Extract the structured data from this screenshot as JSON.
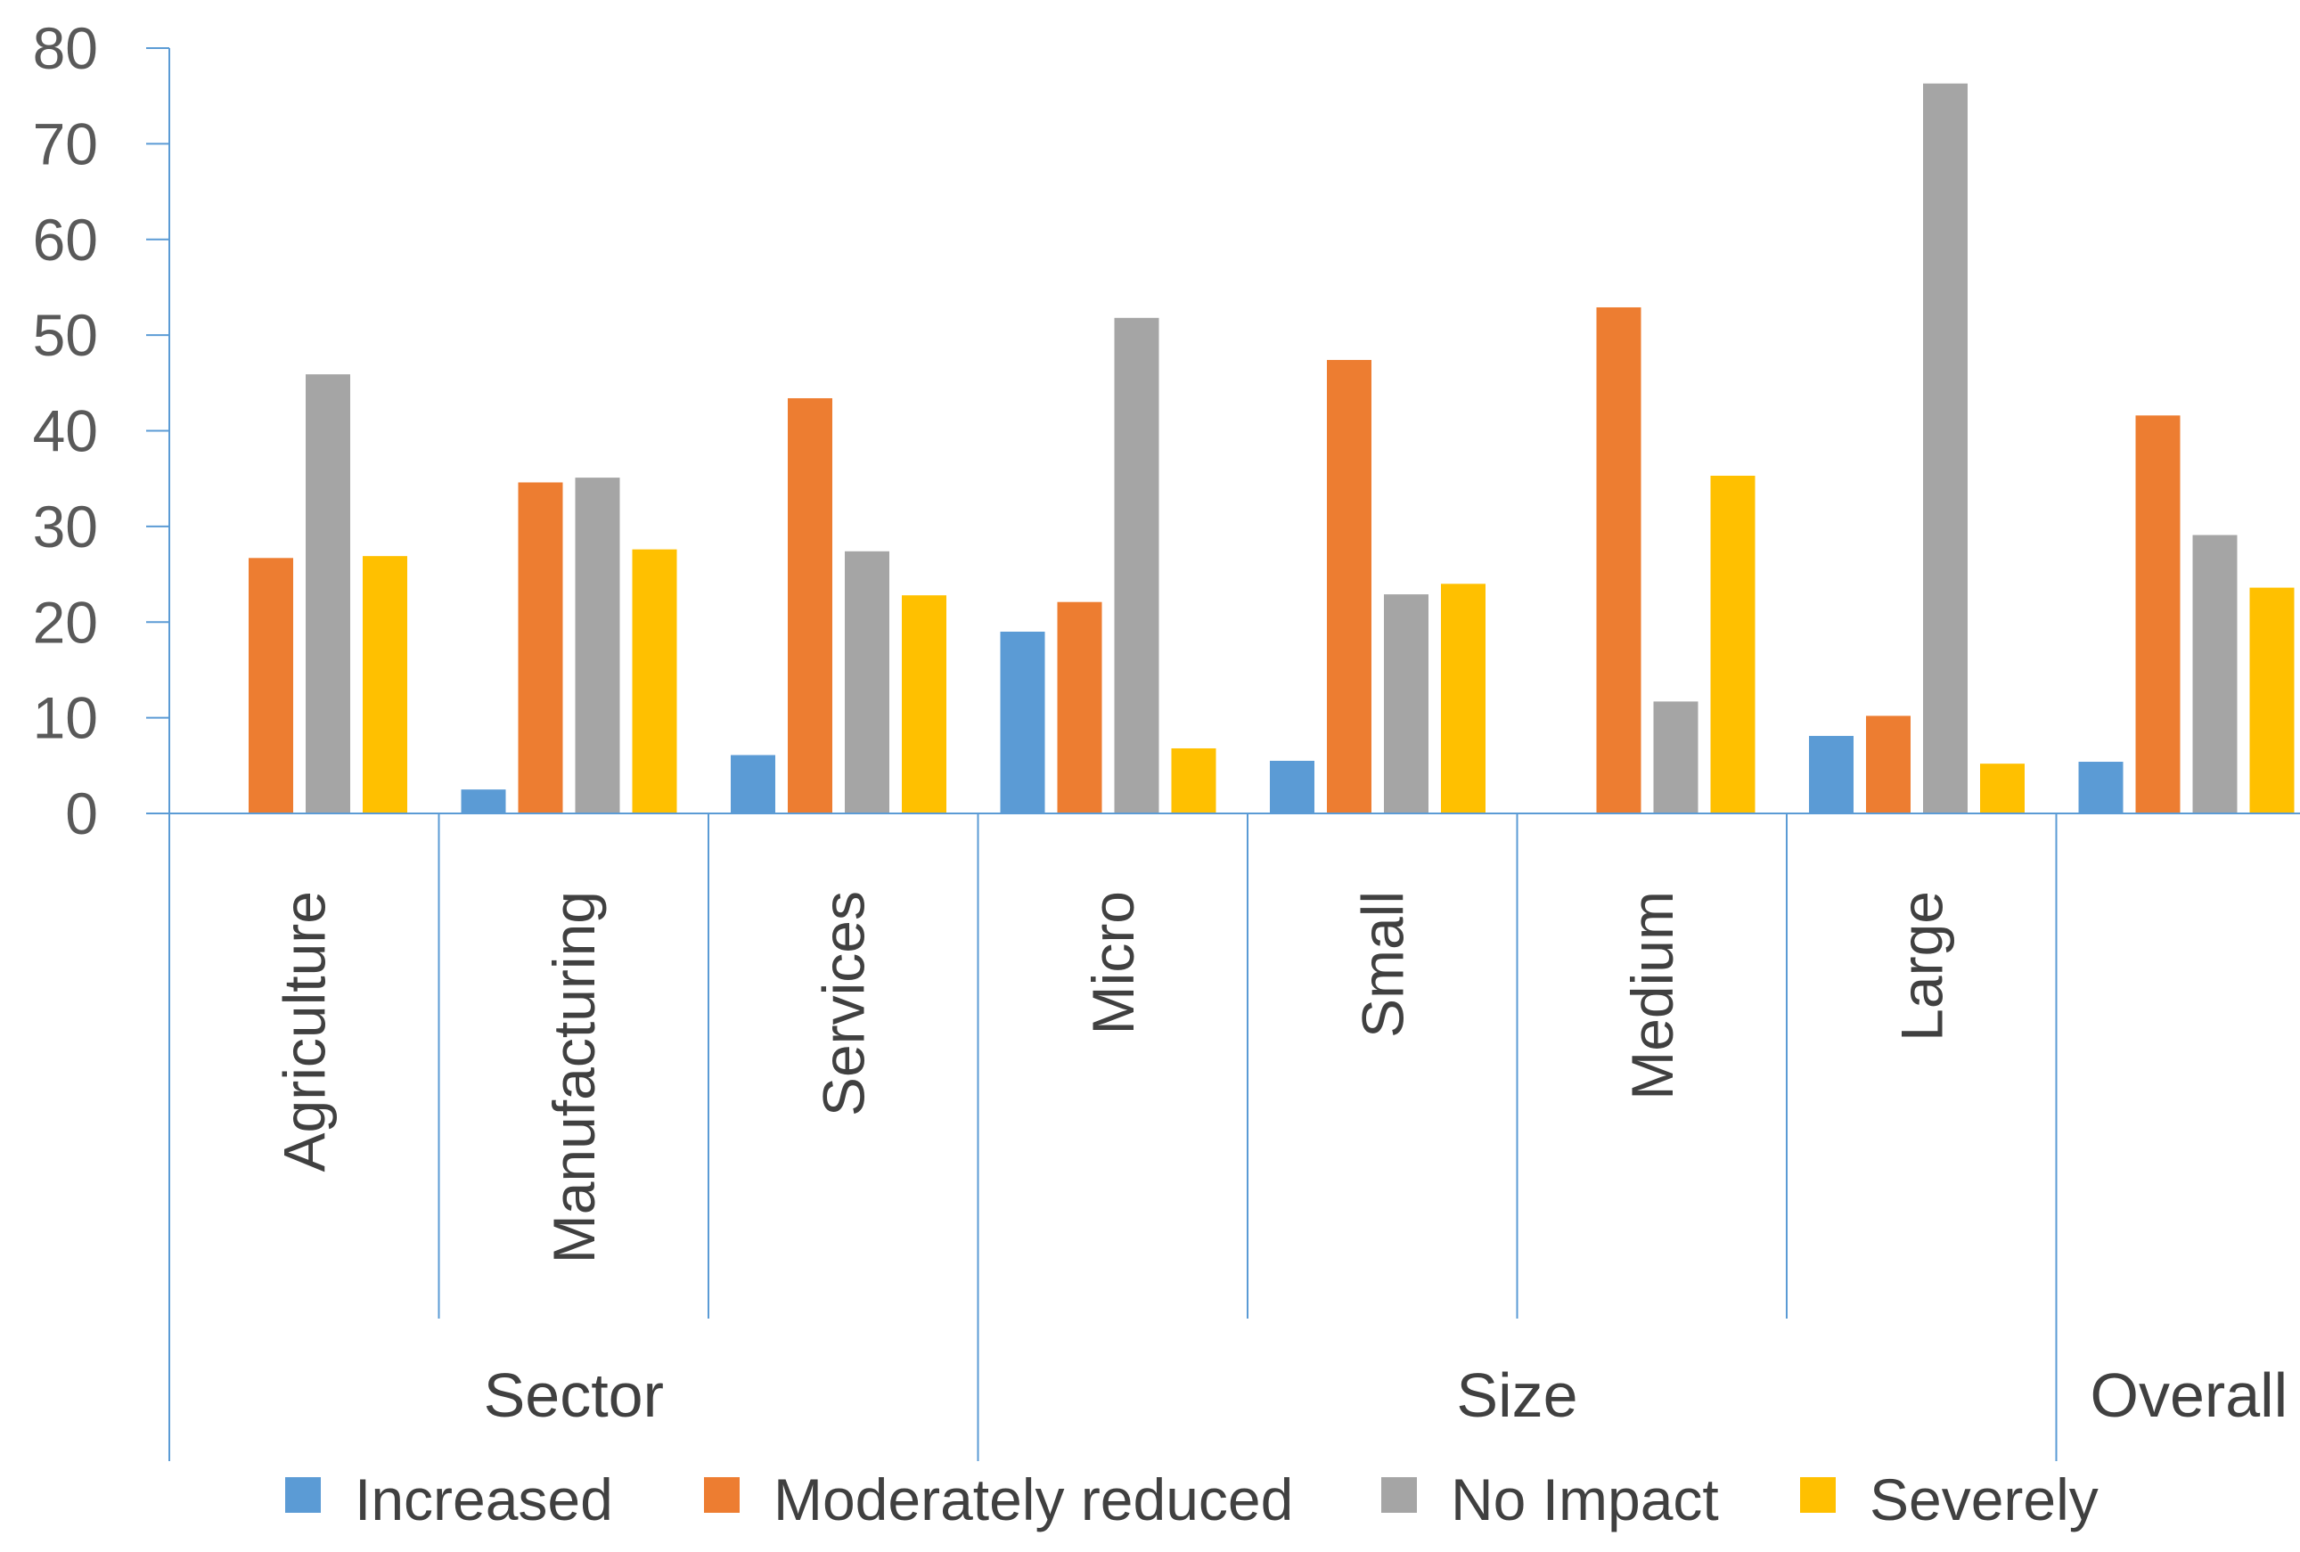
{
  "chart_data": {
    "type": "bar",
    "title": "",
    "xlabel": "",
    "ylabel": "",
    "ylim": [
      0,
      80
    ],
    "yticks": [
      0,
      10,
      20,
      30,
      40,
      50,
      60,
      70,
      80
    ],
    "grid": false,
    "legend_position": "bottom",
    "categories": [
      "Agriculture",
      "Manufacturing",
      "Services",
      "Micro",
      "Small",
      "Medium",
      "Large",
      "Overall"
    ],
    "groups": [
      {
        "label": "Sector",
        "categories": [
          "Agriculture",
          "Manufacturing",
          "Services"
        ]
      },
      {
        "label": "Size",
        "categories": [
          "Micro",
          "Small",
          "Medium",
          "Large"
        ]
      },
      {
        "label": "Overall",
        "categories": [
          "Overall"
        ]
      }
    ],
    "series": [
      {
        "name": "Increased",
        "color": "#5B9BD5",
        "values": [
          0,
          2.5,
          6.1,
          19.0,
          5.5,
          0,
          8.1,
          5.4
        ]
      },
      {
        "name": "Moderately reduced",
        "color": "#ED7D31",
        "values": [
          26.7,
          34.6,
          43.4,
          22.1,
          47.4,
          52.9,
          10.2,
          41.6
        ]
      },
      {
        "name": "No Impact",
        "color": "#A5A5A5",
        "values": [
          45.9,
          35.1,
          27.4,
          51.8,
          22.9,
          11.7,
          76.3,
          29.1
        ]
      },
      {
        "name": "Severely",
        "color": "#FFC000",
        "values": [
          26.9,
          27.6,
          22.8,
          6.8,
          24.0,
          35.3,
          5.2,
          23.6
        ]
      }
    ],
    "axis_color": "#5B9BD5"
  }
}
